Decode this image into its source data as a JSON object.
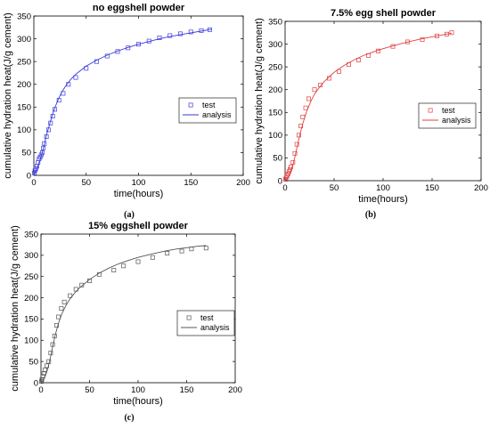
{
  "chart_data": [
    {
      "type": "scatter",
      "title": "no eggshell powder",
      "caption": "(a)",
      "xlabel": "time(hours)",
      "ylabel": "cumulative hydration heat(J/g cement)",
      "xlim": [
        0,
        200
      ],
      "ylim": [
        0,
        350
      ],
      "xticks": [
        0,
        50,
        100,
        150,
        200
      ],
      "yticks": [
        0,
        50,
        100,
        150,
        200,
        250,
        300,
        350
      ],
      "color": "#3a3adb",
      "legend": "right",
      "series": [
        {
          "name": "test",
          "style": "markers",
          "x": [
            0.5,
            1,
            2,
            3,
            4,
            5,
            6,
            7,
            8,
            9,
            10,
            12,
            14,
            16,
            18,
            20,
            24,
            28,
            33,
            40,
            50,
            60,
            70,
            80,
            90,
            100,
            110,
            120,
            130,
            140,
            150,
            160,
            168
          ],
          "y": [
            5,
            10,
            15,
            20,
            28,
            36,
            40,
            45,
            50,
            60,
            70,
            85,
            100,
            115,
            130,
            145,
            165,
            180,
            200,
            215,
            235,
            250,
            262,
            272,
            280,
            288,
            295,
            302,
            307,
            311,
            315,
            318,
            320
          ]
        },
        {
          "name": "analysis",
          "style": "line",
          "x": [
            0,
            1,
            2,
            4,
            6,
            8,
            10,
            12,
            15,
            18,
            22,
            26,
            30,
            35,
            40,
            50,
            60,
            70,
            80,
            90,
            100,
            110,
            120,
            130,
            140,
            150,
            160,
            170
          ],
          "y": [
            0,
            5,
            10,
            22,
            35,
            50,
            68,
            88,
            112,
            135,
            160,
            180,
            195,
            210,
            222,
            240,
            253,
            264,
            273,
            281,
            288,
            294,
            300,
            305,
            309,
            313,
            317,
            321
          ]
        }
      ]
    },
    {
      "type": "scatter",
      "title": "7.5% egg shell powder",
      "caption": "(b)",
      "xlabel": "time(hours)",
      "ylabel": "cumulative hydration heat(J/g cement)",
      "xlim": [
        0,
        200
      ],
      "ylim": [
        0,
        350
      ],
      "xticks": [
        0,
        50,
        100,
        150,
        200
      ],
      "yticks": [
        0,
        50,
        100,
        150,
        200,
        250,
        300,
        350
      ],
      "color": "#e04040",
      "legend": "right",
      "series": [
        {
          "name": "test",
          "style": "markers",
          "x": [
            0.5,
            1,
            2,
            3,
            4,
            5,
            6,
            8,
            10,
            12,
            14,
            16,
            18,
            21,
            24,
            30,
            36,
            45,
            55,
            65,
            75,
            85,
            95,
            110,
            125,
            140,
            155,
            165,
            170
          ],
          "y": [
            3,
            6,
            10,
            15,
            20,
            25,
            30,
            40,
            60,
            80,
            100,
            120,
            140,
            160,
            180,
            200,
            210,
            225,
            240,
            255,
            265,
            275,
            285,
            295,
            305,
            310,
            318,
            322,
            325
          ]
        },
        {
          "name": "analysis",
          "style": "line",
          "x": [
            0,
            2,
            4,
            6,
            8,
            10,
            12,
            15,
            18,
            22,
            26,
            30,
            35,
            40,
            50,
            60,
            70,
            80,
            90,
            100,
            110,
            120,
            130,
            140,
            150,
            160,
            170
          ],
          "y": [
            0,
            5,
            12,
            22,
            35,
            52,
            72,
            100,
            125,
            152,
            173,
            190,
            205,
            218,
            238,
            253,
            265,
            275,
            283,
            290,
            296,
            302,
            307,
            312,
            316,
            320,
            324
          ]
        }
      ]
    },
    {
      "type": "scatter",
      "title": "15% eggshell powder",
      "caption": "(c)",
      "xlabel": "time(hours)",
      "ylabel": "cumulative hydration heat(J/g cement)",
      "xlim": [
        0,
        200
      ],
      "ylim": [
        0,
        350
      ],
      "xticks": [
        0,
        50,
        100,
        150,
        200
      ],
      "yticks": [
        0,
        50,
        100,
        150,
        200,
        250,
        300,
        350
      ],
      "color": "#555555",
      "legend": "right",
      "series": [
        {
          "name": "test",
          "style": "markers",
          "x": [
            0.5,
            1,
            2,
            3,
            4,
            6,
            8,
            10,
            12,
            14,
            16,
            18,
            21,
            24,
            30,
            36,
            42,
            50,
            60,
            75,
            85,
            100,
            115,
            130,
            145,
            155,
            170
          ],
          "y": [
            3,
            8,
            15,
            22,
            30,
            40,
            50,
            70,
            90,
            110,
            135,
            155,
            175,
            190,
            205,
            220,
            230,
            240,
            255,
            265,
            275,
            285,
            295,
            305,
            310,
            315,
            317
          ]
        },
        {
          "name": "analysis",
          "style": "line",
          "x": [
            0,
            2,
            4,
            6,
            8,
            10,
            12,
            15,
            18,
            22,
            26,
            30,
            35,
            40,
            50,
            60,
            70,
            80,
            90,
            100,
            110,
            120,
            130,
            140,
            150,
            160,
            170
          ],
          "y": [
            0,
            6,
            14,
            26,
            42,
            62,
            85,
            115,
            140,
            165,
            183,
            198,
            212,
            224,
            243,
            258,
            270,
            280,
            288,
            295,
            301,
            306,
            311,
            315,
            318,
            321,
            323
          ]
        }
      ]
    }
  ]
}
